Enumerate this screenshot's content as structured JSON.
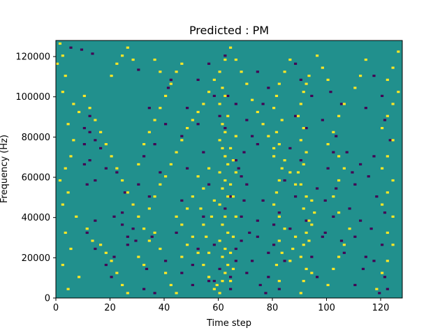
{
  "chart_data": {
    "type": "heatmap",
    "title": "Predicted : PM",
    "xlabel": "Time step",
    "ylabel": "Frequency (Hz)",
    "xlim": [
      0,
      128
    ],
    "ylim": [
      0,
      128000
    ],
    "x_ticks": [
      0,
      20,
      40,
      60,
      80,
      100,
      120
    ],
    "y_ticks": [
      0,
      20000,
      40000,
      60000,
      80000,
      100000,
      120000
    ],
    "n_time_steps": 128,
    "n_freq_bins": 128,
    "colormap": {
      "background_value": "#21908d",
      "low_value": "#440154",
      "high_value": "#fde725"
    },
    "grid": false,
    "colorbar": false,
    "note_low_cells": "cells rendered in low_value color, as [time_step, freq_bin]",
    "low_cells": [
      [
        5,
        124
      ],
      [
        9,
        123
      ],
      [
        13,
        121
      ],
      [
        30,
        113
      ],
      [
        42,
        108
      ],
      [
        41,
        104
      ],
      [
        12,
        90
      ],
      [
        10,
        84
      ],
      [
        12,
        82
      ],
      [
        14,
        78
      ],
      [
        10,
        76
      ],
      [
        16,
        74
      ],
      [
        12,
        68
      ],
      [
        10,
        66
      ],
      [
        18,
        64
      ],
      [
        22,
        62
      ],
      [
        14,
        58
      ],
      [
        11,
        56
      ],
      [
        25,
        52
      ],
      [
        28,
        46
      ],
      [
        21,
        40
      ],
      [
        14,
        38
      ],
      [
        24,
        36
      ],
      [
        11,
        32
      ],
      [
        35,
        30
      ],
      [
        29,
        28
      ],
      [
        26,
        26
      ],
      [
        14,
        24
      ],
      [
        21,
        20
      ],
      [
        40,
        18
      ],
      [
        33,
        14
      ],
      [
        46,
        12
      ],
      [
        58,
        8
      ],
      [
        50,
        6
      ],
      [
        32,
        4
      ],
      [
        36,
        2
      ],
      [
        63,
        100
      ],
      [
        66,
        96
      ],
      [
        70,
        88
      ],
      [
        72,
        80
      ],
      [
        74,
        76
      ],
      [
        69,
        72
      ],
      [
        67,
        64
      ],
      [
        70,
        56
      ],
      [
        69,
        48
      ],
      [
        68,
        40
      ],
      [
        71,
        32
      ],
      [
        66,
        24
      ],
      [
        72,
        18
      ],
      [
        70,
        12
      ],
      [
        75,
        6
      ],
      [
        77,
        2
      ],
      [
        101,
        102
      ],
      [
        105,
        96
      ],
      [
        98,
        88
      ],
      [
        103,
        80
      ],
      [
        107,
        72
      ],
      [
        109,
        62
      ],
      [
        103,
        54
      ],
      [
        99,
        48
      ],
      [
        102,
        40
      ],
      [
        99,
        32
      ],
      [
        105,
        28
      ],
      [
        114,
        20
      ],
      [
        113,
        14
      ],
      [
        110,
        6
      ],
      [
        119,
        2
      ],
      [
        117,
        110
      ],
      [
        120,
        100
      ],
      [
        114,
        94
      ],
      [
        121,
        88
      ],
      [
        123,
        78
      ],
      [
        117,
        70
      ],
      [
        115,
        60
      ],
      [
        118,
        50
      ],
      [
        121,
        42
      ],
      [
        116,
        34
      ],
      [
        120,
        26
      ],
      [
        117,
        18
      ],
      [
        121,
        10
      ],
      [
        122,
        4
      ],
      [
        88,
        116
      ],
      [
        90,
        108
      ],
      [
        94,
        100
      ],
      [
        88,
        90
      ],
      [
        92,
        84
      ],
      [
        86,
        74
      ],
      [
        90,
        68
      ],
      [
        84,
        58
      ],
      [
        88,
        50
      ],
      [
        82,
        42
      ],
      [
        86,
        34
      ],
      [
        80,
        26
      ],
      [
        84,
        18
      ],
      [
        78,
        10
      ],
      [
        82,
        4
      ],
      [
        62,
        120
      ],
      [
        56,
        116
      ],
      [
        52,
        108
      ],
      [
        58,
        100
      ],
      [
        48,
        94
      ],
      [
        52,
        86
      ],
      [
        46,
        80
      ],
      [
        54,
        72
      ],
      [
        48,
        64
      ],
      [
        56,
        56
      ],
      [
        46,
        48
      ],
      [
        54,
        40
      ],
      [
        44,
        32
      ],
      [
        52,
        24
      ],
      [
        50,
        16
      ],
      [
        56,
        8
      ],
      [
        64,
        10
      ],
      [
        66,
        18
      ],
      [
        64,
        4
      ],
      [
        68,
        28
      ],
      [
        78,
        22
      ],
      [
        80,
        36
      ],
      [
        62,
        44
      ],
      [
        64,
        50
      ],
      [
        68,
        60
      ],
      [
        66,
        68
      ],
      [
        76,
        48
      ],
      [
        74,
        38
      ],
      [
        60,
        14
      ],
      [
        58,
        26
      ],
      [
        74,
        30
      ],
      [
        74,
        112
      ],
      [
        78,
        104
      ],
      [
        76,
        96
      ],
      [
        60,
        90
      ],
      [
        62,
        84
      ],
      [
        96,
        10
      ],
      [
        94,
        20
      ],
      [
        98,
        30
      ],
      [
        92,
        38
      ],
      [
        96,
        54
      ],
      [
        100,
        64
      ],
      [
        102,
        72
      ],
      [
        106,
        22
      ],
      [
        110,
        30
      ],
      [
        112,
        38
      ],
      [
        108,
        44
      ],
      [
        110,
        56
      ],
      [
        112,
        66
      ],
      [
        18,
        16
      ],
      [
        20,
        10
      ],
      [
        26,
        30
      ],
      [
        28,
        34
      ],
      [
        24,
        42
      ],
      [
        34,
        50
      ],
      [
        30,
        56
      ],
      [
        38,
        62
      ],
      [
        32,
        70
      ],
      [
        36,
        76
      ],
      [
        40,
        86
      ],
      [
        34,
        94
      ]
    ],
    "note_high_cells": "cells rendered in high_value color, as [time_step, freq_bin]",
    "high_cells": [
      [
        1,
        126
      ],
      [
        2,
        120
      ],
      [
        0,
        116
      ],
      [
        3,
        110
      ],
      [
        2,
        102
      ],
      [
        6,
        96
      ],
      [
        8,
        92
      ],
      [
        4,
        86
      ],
      [
        6,
        78
      ],
      [
        5,
        70
      ],
      [
        3,
        64
      ],
      [
        1,
        58
      ],
      [
        4,
        52
      ],
      [
        2,
        46
      ],
      [
        7,
        40
      ],
      [
        3,
        32
      ],
      [
        5,
        24
      ],
      [
        2,
        16
      ],
      [
        8,
        10
      ],
      [
        4,
        4
      ],
      [
        11,
        34
      ],
      [
        13,
        28
      ],
      [
        16,
        26
      ],
      [
        18,
        22
      ],
      [
        20,
        18
      ],
      [
        22,
        12
      ],
      [
        24,
        6
      ],
      [
        26,
        2
      ],
      [
        30,
        20
      ],
      [
        32,
        16
      ],
      [
        34,
        28
      ],
      [
        36,
        32
      ],
      [
        38,
        24
      ],
      [
        40,
        12
      ],
      [
        42,
        6
      ],
      [
        44,
        2
      ],
      [
        46,
        20
      ],
      [
        48,
        26
      ],
      [
        50,
        30
      ],
      [
        52,
        22
      ],
      [
        54,
        16
      ],
      [
        56,
        10
      ],
      [
        58,
        4
      ],
      [
        60,
        2
      ],
      [
        59,
        6
      ],
      [
        61,
        8
      ],
      [
        62,
        12
      ],
      [
        63,
        16
      ],
      [
        61,
        20
      ],
      [
        62,
        24
      ],
      [
        60,
        28
      ],
      [
        63,
        32
      ],
      [
        61,
        36
      ],
      [
        62,
        40
      ],
      [
        60,
        46
      ],
      [
        63,
        50
      ],
      [
        61,
        54
      ],
      [
        62,
        58
      ],
      [
        60,
        62
      ],
      [
        63,
        66
      ],
      [
        62,
        70
      ],
      [
        61,
        74
      ],
      [
        60,
        78
      ],
      [
        62,
        82
      ],
      [
        61,
        86
      ],
      [
        63,
        90
      ],
      [
        60,
        96
      ],
      [
        62,
        100
      ],
      [
        61,
        104
      ],
      [
        64,
        8
      ],
      [
        65,
        14
      ],
      [
        64,
        22
      ],
      [
        65,
        30
      ],
      [
        66,
        40
      ],
      [
        65,
        50
      ],
      [
        64,
        56
      ],
      [
        66,
        62
      ],
      [
        65,
        68
      ],
      [
        64,
        74
      ],
      [
        66,
        80
      ],
      [
        57,
        40
      ],
      [
        58,
        48
      ],
      [
        55,
        30
      ],
      [
        56,
        22
      ],
      [
        54,
        36
      ],
      [
        53,
        44
      ],
      [
        54,
        54
      ],
      [
        56,
        64
      ],
      [
        90,
        2
      ],
      [
        91,
        8
      ],
      [
        92,
        14
      ],
      [
        90,
        20
      ],
      [
        91,
        26
      ],
      [
        92,
        32
      ],
      [
        93,
        38
      ],
      [
        91,
        44
      ],
      [
        92,
        50
      ],
      [
        90,
        56
      ],
      [
        89,
        62
      ],
      [
        91,
        66
      ],
      [
        92,
        72
      ],
      [
        90,
        78
      ],
      [
        91,
        84
      ],
      [
        89,
        90
      ],
      [
        90,
        96
      ],
      [
        91,
        102
      ],
      [
        92,
        106
      ],
      [
        93,
        110
      ],
      [
        88,
        30
      ],
      [
        87,
        24
      ],
      [
        86,
        18
      ],
      [
        94,
        36
      ],
      [
        95,
        42
      ],
      [
        94,
        48
      ],
      [
        93,
        28
      ],
      [
        94,
        12
      ],
      [
        82,
        8
      ],
      [
        81,
        16
      ],
      [
        83,
        22
      ],
      [
        82,
        28
      ],
      [
        84,
        34
      ],
      [
        82,
        40
      ],
      [
        80,
        46
      ],
      [
        81,
        52
      ],
      [
        82,
        58
      ],
      [
        83,
        64
      ],
      [
        80,
        70
      ],
      [
        82,
        76
      ],
      [
        81,
        82
      ],
      [
        83,
        88
      ],
      [
        80,
        94
      ],
      [
        81,
        100
      ],
      [
        82,
        106
      ],
      [
        84,
        112
      ],
      [
        86,
        118
      ],
      [
        100,
        6
      ],
      [
        102,
        14
      ],
      [
        104,
        20
      ],
      [
        106,
        26
      ],
      [
        108,
        34
      ],
      [
        104,
        42
      ],
      [
        102,
        50
      ],
      [
        104,
        58
      ],
      [
        106,
        64
      ],
      [
        104,
        70
      ],
      [
        100,
        76
      ],
      [
        102,
        82
      ],
      [
        104,
        90
      ],
      [
        106,
        96
      ],
      [
        110,
        104
      ],
      [
        112,
        110
      ],
      [
        114,
        118
      ],
      [
        118,
        4
      ],
      [
        120,
        12
      ],
      [
        122,
        18
      ],
      [
        124,
        26
      ],
      [
        122,
        32
      ],
      [
        124,
        40
      ],
      [
        120,
        46
      ],
      [
        122,
        52
      ],
      [
        124,
        58
      ],
      [
        120,
        64
      ],
      [
        122,
        70
      ],
      [
        124,
        78
      ],
      [
        120,
        84
      ],
      [
        122,
        90
      ],
      [
        124,
        96
      ],
      [
        126,
        102
      ],
      [
        122,
        108
      ],
      [
        124,
        114
      ],
      [
        126,
        122
      ],
      [
        10,
        100
      ],
      [
        12,
        94
      ],
      [
        14,
        88
      ],
      [
        16,
        82
      ],
      [
        18,
        76
      ],
      [
        20,
        70
      ],
      [
        22,
        64
      ],
      [
        24,
        58
      ],
      [
        26,
        52
      ],
      [
        28,
        46
      ],
      [
        30,
        40
      ],
      [
        32,
        34
      ],
      [
        34,
        44
      ],
      [
        36,
        50
      ],
      [
        38,
        56
      ],
      [
        40,
        60
      ],
      [
        42,
        66
      ],
      [
        44,
        72
      ],
      [
        46,
        78
      ],
      [
        48,
        84
      ],
      [
        50,
        88
      ],
      [
        52,
        92
      ],
      [
        54,
        96
      ],
      [
        56,
        102
      ],
      [
        58,
        108
      ],
      [
        60,
        112
      ],
      [
        62,
        118
      ],
      [
        64,
        124
      ],
      [
        66,
        118
      ],
      [
        68,
        112
      ],
      [
        70,
        106
      ],
      [
        72,
        98
      ],
      [
        74,
        92
      ],
      [
        76,
        86
      ],
      [
        78,
        80
      ],
      [
        80,
        74
      ],
      [
        84,
        68
      ],
      [
        86,
        62
      ],
      [
        88,
        56
      ],
      [
        96,
        120
      ],
      [
        98,
        114
      ],
      [
        100,
        108
      ],
      [
        44,
        40
      ],
      [
        46,
        36
      ],
      [
        48,
        44
      ],
      [
        50,
        50
      ],
      [
        52,
        60
      ],
      [
        30,
        66
      ],
      [
        32,
        76
      ],
      [
        34,
        82
      ],
      [
        36,
        88
      ],
      [
        38,
        94
      ],
      [
        40,
        100
      ],
      [
        42,
        106
      ],
      [
        44,
        112
      ],
      [
        46,
        116
      ],
      [
        20,
        110
      ],
      [
        22,
        116
      ],
      [
        24,
        120
      ],
      [
        26,
        124
      ],
      [
        28,
        118
      ],
      [
        36,
        118
      ],
      [
        38,
        112
      ]
    ]
  }
}
